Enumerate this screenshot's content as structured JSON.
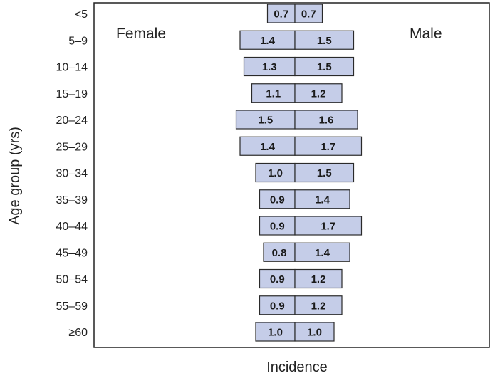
{
  "chart_data": {
    "type": "bar",
    "orientation": "horizontal",
    "layout": "population-pyramid",
    "categories": [
      "<5",
      "5–9",
      "10–14",
      "15–19",
      "20–24",
      "25–29",
      "30–34",
      "35–39",
      "40–44",
      "45–49",
      "50–54",
      "55–59",
      "≥60"
    ],
    "series": [
      {
        "name": "Female",
        "values": [
          0.7,
          1.4,
          1.3,
          1.1,
          1.5,
          1.4,
          1.0,
          0.9,
          0.9,
          0.8,
          0.9,
          0.9,
          1.0
        ]
      },
      {
        "name": "Male",
        "values": [
          0.7,
          1.5,
          1.5,
          1.2,
          1.6,
          1.7,
          1.5,
          1.4,
          1.7,
          1.4,
          1.2,
          1.2,
          1.0
        ]
      }
    ],
    "value_labels": {
      "Female": [
        "0.7",
        "1.4",
        "1.3",
        "1.1",
        "1.5",
        "1.4",
        "1.0",
        "0.9",
        "0.9",
        "0.8",
        "0.9",
        "0.9",
        "1.0"
      ],
      "Male": [
        "0.7",
        "1.5",
        "1.5",
        "1.2",
        "1.6",
        "1.7",
        "1.5",
        "1.4",
        "1.7",
        "1.4",
        "1.2",
        "1.2",
        "1.0"
      ]
    },
    "xlabel": "Incidence",
    "ylabel": "Age group (yrs)",
    "grid": false,
    "legend": "inside-top",
    "colors": {
      "bar_fill": "#c5cde8",
      "bar_stroke": "#2a2a2a",
      "frame": "#222222",
      "text": "#222222"
    }
  }
}
